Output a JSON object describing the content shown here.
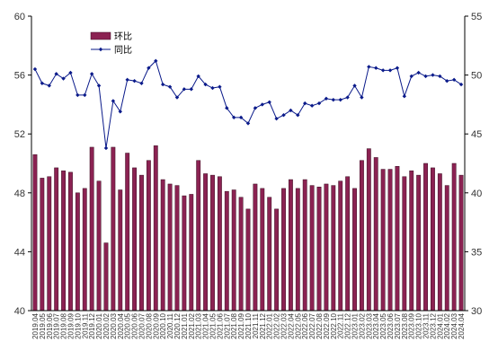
{
  "chart_data": {
    "type": "bar",
    "categories": [
      "2019.04",
      "2019.05",
      "2019.06",
      "2019.07",
      "2019.08",
      "2019.09",
      "2019.10",
      "2019.11",
      "2019.12",
      "2020.01",
      "2020.02",
      "2020.03",
      "2020.04",
      "2020.05",
      "2020.06",
      "2020.07",
      "2020.08",
      "2020.09",
      "2020.10",
      "2020.11",
      "2020.12",
      "2021.01",
      "2021.02",
      "2021.03",
      "2021.04",
      "2021.05",
      "2021.06",
      "2021.07",
      "2021.08",
      "2021.09",
      "2021.10",
      "2021.11",
      "2021.12",
      "2022.01",
      "2022.02",
      "2022.03",
      "2022.04",
      "2022.05",
      "2022.06",
      "2022.07",
      "2022.08",
      "2022.09",
      "2022.10",
      "2022.11",
      "2022.12",
      "2023.01",
      "2023.02",
      "2023.03",
      "2023.04",
      "2023.05",
      "2023.06",
      "2023.07",
      "2023.08",
      "2023.09",
      "2023.10",
      "2023.11",
      "2023.12",
      "2024.01",
      "2024.02",
      "2024.03",
      "2024.04"
    ],
    "series": [
      {
        "name": "环比",
        "type": "bar",
        "axis": "left",
        "color": "#8b2252",
        "values": [
          50.6,
          49.0,
          49.1,
          49.7,
          49.5,
          49.4,
          48.0,
          48.3,
          51.1,
          48.8,
          44.6,
          51.1,
          48.2,
          50.7,
          49.7,
          49.2,
          50.2,
          51.2,
          48.9,
          48.6,
          48.5,
          47.8,
          47.9,
          50.2,
          49.3,
          49.2,
          49.1,
          48.1,
          48.2,
          47.7,
          46.9,
          48.6,
          48.3,
          47.7,
          46.9,
          48.3,
          48.9,
          48.3,
          48.9,
          48.5,
          48.4,
          48.6,
          48.5,
          48.8,
          49.1,
          48.3,
          50.2,
          51.0,
          50.4,
          49.6,
          49.6,
          49.8,
          49.1,
          49.5,
          49.2,
          50.0,
          49.7,
          49.3,
          48.5,
          50.0,
          49.2
        ]
      },
      {
        "name": "同比",
        "type": "line",
        "axis": "right",
        "color": "#0a1a8a",
        "values": [
          50.5,
          49.3,
          49.1,
          50.1,
          49.7,
          50.2,
          48.3,
          48.3,
          50.1,
          49.1,
          43.8,
          47.8,
          46.9,
          49.6,
          49.5,
          49.3,
          50.6,
          51.2,
          49.2,
          49.0,
          48.1,
          48.8,
          48.8,
          49.9,
          49.2,
          48.9,
          49.0,
          47.2,
          46.4,
          46.4,
          45.9,
          47.2,
          47.5,
          47.7,
          46.3,
          46.6,
          47.0,
          46.6,
          47.6,
          47.4,
          47.6,
          48.0,
          47.9,
          47.9,
          48.1,
          49.1,
          48.1,
          50.7,
          50.6,
          50.4,
          50.4,
          50.6,
          48.2,
          49.9,
          50.2,
          49.9,
          50.0,
          49.9,
          49.5,
          49.6,
          49.2
        ]
      }
    ],
    "left_axis": {
      "min": 40,
      "max": 60,
      "ticks": [
        40,
        44,
        48,
        52,
        56,
        60
      ]
    },
    "right_axis": {
      "min": 30,
      "max": 55,
      "ticks": [
        30,
        35,
        40,
        45,
        50,
        55
      ]
    },
    "legend": {
      "position": "top-left",
      "entries": [
        "环比",
        "同比"
      ]
    },
    "grid": false
  }
}
